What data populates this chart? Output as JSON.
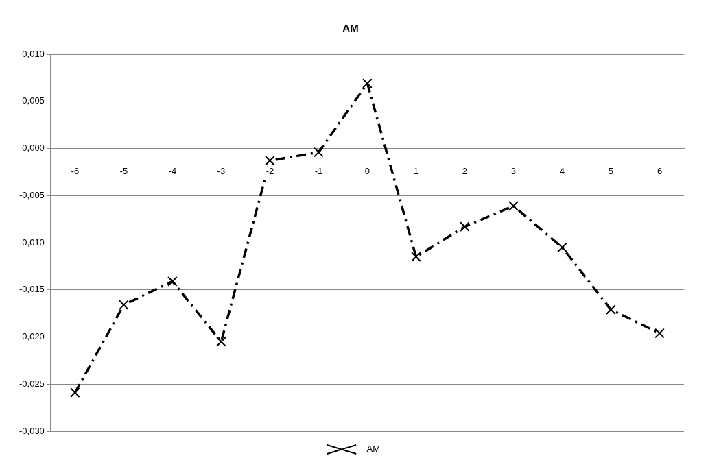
{
  "chart_data": {
    "type": "line",
    "title": "AM",
    "categories": [
      "-6",
      "-5",
      "-4",
      "-3",
      "-2",
      "-1",
      "0",
      "1",
      "2",
      "3",
      "4",
      "5",
      "6"
    ],
    "series": [
      {
        "name": "AM",
        "color": "#000000",
        "values": [
          -0.0259,
          -0.0166,
          -0.0141,
          -0.0205,
          -0.0013,
          -0.0004,
          0.0069,
          -0.0115,
          -0.0083,
          -0.0061,
          -0.0105,
          -0.0171,
          -0.0196
        ]
      }
    ],
    "ylim": [
      -0.03,
      0.01
    ],
    "yticks": [
      {
        "value": -0.03,
        "label": "-0,030"
      },
      {
        "value": -0.025,
        "label": "-0,025"
      },
      {
        "value": -0.02,
        "label": "-0,020"
      },
      {
        "value": -0.015,
        "label": "-0,015"
      },
      {
        "value": -0.01,
        "label": "-0,010"
      },
      {
        "value": -0.005,
        "label": "-0,005"
      },
      {
        "value": 0,
        "label": "0,000"
      },
      {
        "value": 0.005,
        "label": "0,005"
      },
      {
        "value": 0.01,
        "label": "0,010"
      }
    ],
    "grid": "y",
    "legend": "bottom",
    "marker": "cross",
    "line_style": "dashed"
  }
}
